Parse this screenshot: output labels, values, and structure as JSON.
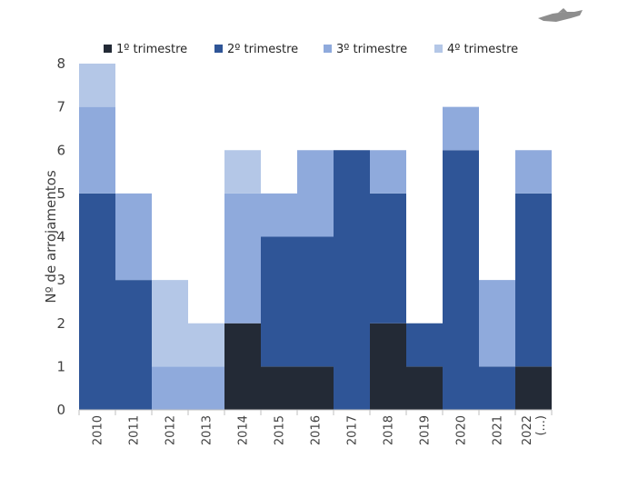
{
  "chart_data": {
    "type": "bar",
    "stacked": true,
    "categories": [
      "2010",
      "2011",
      "2012",
      "2013",
      "2014",
      "2015",
      "2016",
      "2017",
      "2018",
      "2019",
      "2020",
      "2021",
      "2022\n(...)"
    ],
    "series": [
      {
        "name": "1º trimestre",
        "color": "#232a36",
        "values": [
          0,
          0,
          0,
          0,
          2,
          1,
          1,
          0,
          2,
          1,
          0,
          0,
          1
        ]
      },
      {
        "name": "2º trimestre",
        "color": "#2f5597",
        "values": [
          5,
          3,
          0,
          0,
          0,
          3,
          3,
          6,
          3,
          1,
          6,
          1,
          4
        ]
      },
      {
        "name": "3º trimestre",
        "color": "#8faadc",
        "values": [
          2,
          2,
          1,
          1,
          3,
          1,
          2,
          0,
          1,
          0,
          1,
          2,
          1
        ]
      },
      {
        "name": "4º trimestre",
        "color": "#b4c7e7",
        "values": [
          1,
          0,
          2,
          1,
          1,
          0,
          0,
          0,
          0,
          0,
          0,
          0,
          0
        ]
      }
    ],
    "ylabel": "Nº de arrojamentos",
    "ylim": [
      0,
      8
    ],
    "yticks": [
      0,
      1,
      2,
      3,
      4,
      5,
      6,
      7,
      8
    ],
    "legend_position": "top",
    "grid": false
  },
  "logo": {
    "icon": "fish-logo-icon"
  }
}
